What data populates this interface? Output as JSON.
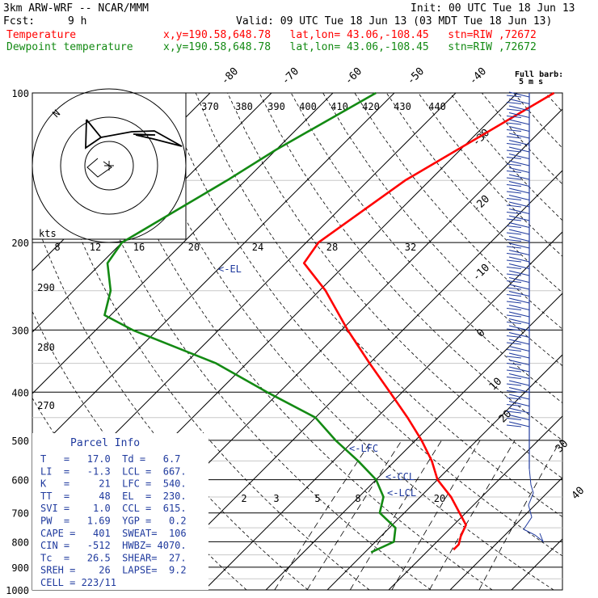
{
  "header": {
    "model": "3km ARW-WRF -- NCAR/MMM",
    "init": "Init: 00 UTC Tue 18 Jun 13",
    "fcst_label": "Fcst:",
    "fcst_value": "9 h",
    "valid": "Valid: 09 UTC Tue 18 Jun 13 (03 MDT Tue 18 Jun 13)",
    "temperature_label": "Temperature",
    "temperature_loc": "x,y=190.58,648.78   lat,lon= 43.06,-108.45   stn=RIW ,72672",
    "dewpoint_label": "Dewpoint temperature",
    "dewpoint_loc": "x,y=190.58,648.78   lat,lon= 43.06,-108.45   stn=RIW ,72672",
    "barb_title_1": "Full barb:",
    "barb_title_2": "5 m s"
  },
  "colors": {
    "temperature": "#ff0000",
    "dewpoint": "#138a13",
    "parcel": "#1f3a9e",
    "grid": "#000000"
  },
  "chart_data": {
    "type": "line",
    "title": "",
    "pressure_levels": [
      "100",
      "200",
      "300",
      "400",
      "500",
      "600",
      "700",
      "800",
      "900",
      "1000"
    ],
    "isotherm_labels": [
      "-80",
      "-70",
      "-60",
      "-50",
      "-40",
      "-30",
      "-20",
      "-10",
      "0",
      "10",
      "20",
      "30",
      "40"
    ],
    "theta_labels": [
      "370",
      "380",
      "390",
      "400",
      "410",
      "420",
      "430",
      "440",
      "290",
      "280",
      "270"
    ],
    "mixing_ratio_labels": [
      "2",
      "3",
      "5",
      "8",
      "20"
    ],
    "series": [
      {
        "name": "Temperature",
        "points": [
          [
            100,
            -44
          ],
          [
            150,
            -54
          ],
          [
            200,
            -58
          ],
          [
            220,
            -57
          ],
          [
            250,
            -49
          ],
          [
            300,
            -39
          ],
          [
            350,
            -30
          ],
          [
            400,
            -22
          ],
          [
            450,
            -15
          ],
          [
            500,
            -9
          ],
          [
            550,
            -4
          ],
          [
            600,
            0
          ],
          [
            650,
            5
          ],
          [
            700,
            9
          ],
          [
            740,
            12
          ],
          [
            780,
            13
          ],
          [
            810,
            14
          ],
          [
            830,
            14
          ]
        ]
      },
      {
        "name": "Dewpoint temperature",
        "points": [
          [
            100,
            -73
          ],
          [
            130,
            -80
          ],
          [
            150,
            -83
          ],
          [
            200,
            -90
          ],
          [
            220,
            -89
          ],
          [
            250,
            -84
          ],
          [
            280,
            -81
          ],
          [
            300,
            -74
          ],
          [
            350,
            -55
          ],
          [
            400,
            -42
          ],
          [
            450,
            -30
          ],
          [
            500,
            -23
          ],
          [
            550,
            -16
          ],
          [
            600,
            -10
          ],
          [
            650,
            -6
          ],
          [
            700,
            -4
          ],
          [
            750,
            1
          ],
          [
            800,
            3
          ],
          [
            820,
            2
          ],
          [
            840,
            1
          ]
        ]
      }
    ],
    "annotations": [
      "<-EL",
      "<-LFC",
      "<-CCL",
      "<-LCL"
    ],
    "hodograph": {
      "ring_label": "kts",
      "ring_values": [
        "8",
        "12",
        "16",
        "20",
        "24",
        "28",
        "32"
      ],
      "axis_label": "N"
    }
  },
  "parcel_info": {
    "title": "Parcel Info",
    "rows": [
      "T   =   17.0  Td =   6.7",
      "LI  =   -1.3  LCL =  667.",
      "K   =     21  LFC =  540.",
      "TT  =     48  EL  =  230.",
      "SVI =    1.0  CCL =  615.",
      "PW  =   1.69  YGP =   0.2",
      "CAPE =   401  SWEAT=  106",
      "CIN =   -512  HWBZ= 4070.",
      "Tc  =   26.5  SHEAR=  27.",
      "SREH =    26  LAPSE=  9.2",
      "CELL = 223/11"
    ]
  }
}
